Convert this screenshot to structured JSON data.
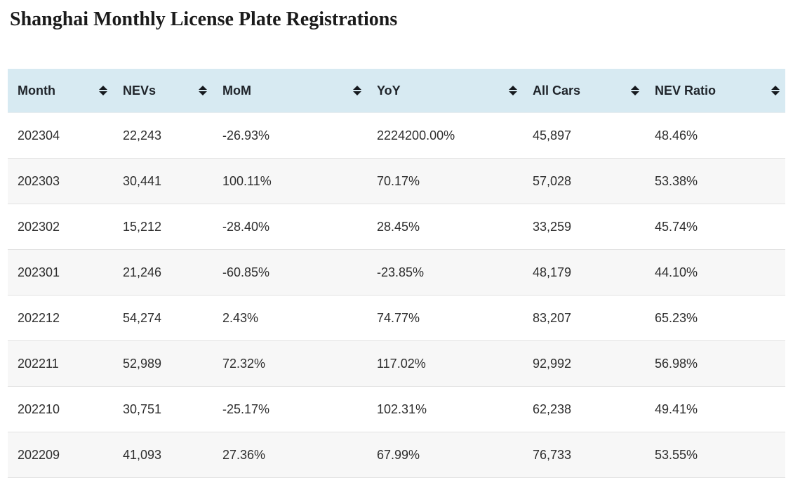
{
  "page": {
    "title": "Shanghai Monthly License Plate Registrations"
  },
  "colors": {
    "header_bg": "#d7eaf2",
    "header_text": "#1f242a",
    "row_stripe": "#f7f7f7",
    "row_border": "#e2e2e2",
    "body_text": "#2e2e2e",
    "sort_icon": "#15191e",
    "title_text": "#1b1b1b"
  },
  "icons": {
    "sort": "sort-arrows-up-down"
  },
  "table": {
    "columns": [
      {
        "key": "month",
        "label": "Month"
      },
      {
        "key": "nevs",
        "label": "NEVs"
      },
      {
        "key": "mom",
        "label": "MoM"
      },
      {
        "key": "yoy",
        "label": "YoY"
      },
      {
        "key": "all-cars",
        "label": "All Cars"
      },
      {
        "key": "nev-ratio",
        "label": "NEV Ratio"
      }
    ],
    "rows": [
      [
        "202304",
        "22,243",
        "-26.93%",
        "2224200.00%",
        "45,897",
        "48.46%"
      ],
      [
        "202303",
        "30,441",
        "100.11%",
        "70.17%",
        "57,028",
        "53.38%"
      ],
      [
        "202302",
        "15,212",
        "-28.40%",
        "28.45%",
        "33,259",
        "45.74%"
      ],
      [
        "202301",
        "21,246",
        "-60.85%",
        "-23.85%",
        "48,179",
        "44.10%"
      ],
      [
        "202212",
        "54,274",
        "2.43%",
        "74.77%",
        "83,207",
        "65.23%"
      ],
      [
        "202211",
        "52,989",
        "72.32%",
        "117.02%",
        "92,992",
        "56.98%"
      ],
      [
        "202210",
        "30,751",
        "-25.17%",
        "102.31%",
        "62,238",
        "49.41%"
      ],
      [
        "202209",
        "41,093",
        "27.36%",
        "67.99%",
        "76,733",
        "53.55%"
      ]
    ]
  }
}
